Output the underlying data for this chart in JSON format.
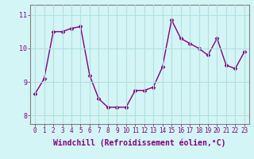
{
  "x": [
    0,
    1,
    2,
    3,
    4,
    5,
    6,
    7,
    8,
    9,
    10,
    11,
    12,
    13,
    14,
    15,
    16,
    17,
    18,
    19,
    20,
    21,
    22,
    23
  ],
  "y": [
    8.65,
    9.1,
    10.5,
    10.5,
    10.6,
    10.65,
    9.2,
    8.5,
    8.25,
    8.25,
    8.25,
    8.75,
    8.75,
    8.85,
    9.45,
    10.85,
    10.3,
    10.15,
    10.0,
    9.8,
    10.3,
    9.5,
    9.4,
    9.9
  ],
  "line_color": "#800080",
  "marker": "D",
  "marker_size": 2.5,
  "bg_color": "#d4f5f5",
  "grid_color": "#b0e0e0",
  "xlabel": "Windchill (Refroidissement éolien,°C)",
  "xlabel_fontsize": 7,
  "xlabel_color": "#800080",
  "ylim": [
    7.75,
    11.3
  ],
  "yticks": [
    8,
    9,
    10,
    11
  ],
  "xticks": [
    0,
    1,
    2,
    3,
    4,
    5,
    6,
    7,
    8,
    9,
    10,
    11,
    12,
    13,
    14,
    15,
    16,
    17,
    18,
    19,
    20,
    21,
    22,
    23
  ],
  "tick_fontsize": 5.5,
  "tick_color": "#800080",
  "line_width": 1.0,
  "spine_color": "#808080"
}
